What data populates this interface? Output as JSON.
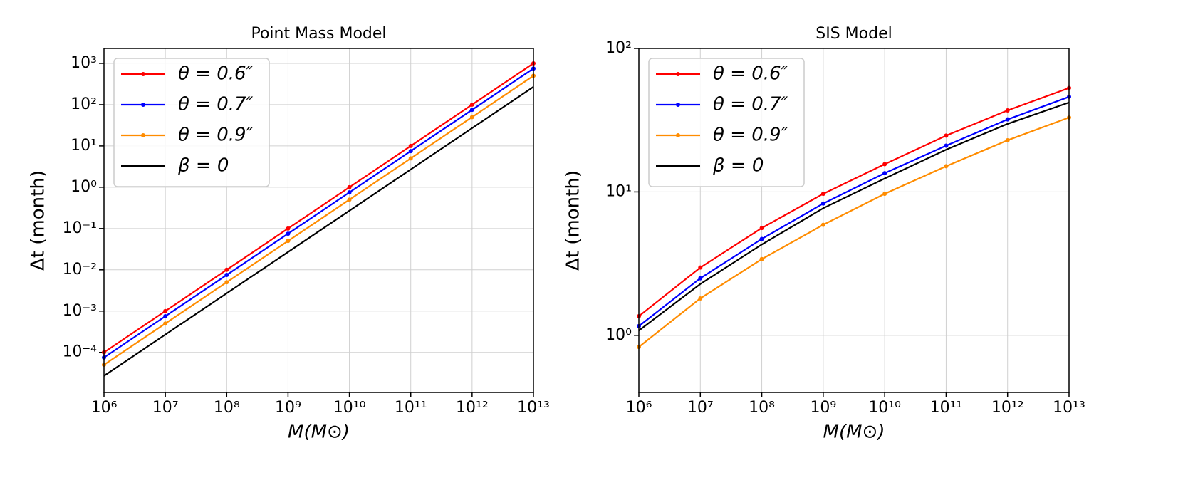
{
  "chart_data": [
    {
      "type": "line",
      "title": "Point Mass Model",
      "xlabel": "M(M⊙)",
      "ylabel": "Δt (month)",
      "xscale": "log",
      "yscale": "log",
      "grid": true,
      "legend": "upper left",
      "x": [
        1000000.0,
        10000000.0,
        100000000.0,
        1000000000.0,
        10000000000.0,
        100000000000.0,
        1000000000000.0,
        10000000000000.0
      ],
      "series": [
        {
          "name": "θ = 0.6″",
          "color": "#ff0000",
          "marker": true,
          "values": [
            0.0001,
            0.001,
            0.01,
            0.1,
            1,
            10,
            100,
            1000
          ]
        },
        {
          "name": "θ = 0.7″",
          "color": "#0000ff",
          "marker": true,
          "values": [
            7.5e-05,
            0.00075,
            0.0075,
            0.075,
            0.75,
            7.5,
            75,
            750
          ]
        },
        {
          "name": "θ = 0.9″",
          "color": "#ff8c00",
          "marker": true,
          "values": [
            5e-05,
            0.0005,
            0.005,
            0.05,
            0.5,
            5,
            50,
            500
          ]
        },
        {
          "name": "β = 0",
          "color": "#000000",
          "marker": false,
          "values": [
            2.7e-05,
            0.00027,
            0.0027,
            0.027,
            0.27,
            2.7,
            27,
            270
          ]
        }
      ],
      "xlim": [
        1000000.0,
        10000000000000.0
      ],
      "xticks": [
        {
          "value": 1000000.0,
          "label": "10⁶"
        },
        {
          "value": 10000000.0,
          "label": "10⁷"
        },
        {
          "value": 100000000.0,
          "label": "10⁸"
        },
        {
          "value": 1000000000.0,
          "label": "10⁹"
        },
        {
          "value": 10000000000.0,
          "label": "10¹⁰"
        },
        {
          "value": 100000000000.0,
          "label": "10¹¹"
        },
        {
          "value": 1000000000000.0,
          "label": "10¹²"
        },
        {
          "value": 10000000000000.0,
          "label": "10¹³"
        }
      ],
      "ylim": [
        1.07e-05,
        2300
      ],
      "yticks": [
        {
          "value": 0.0001,
          "label": "10⁻⁴"
        },
        {
          "value": 0.001,
          "label": "10⁻³"
        },
        {
          "value": 0.01,
          "label": "10⁻²"
        },
        {
          "value": 0.1,
          "label": "10⁻¹"
        },
        {
          "value": 1,
          "label": "10⁰"
        },
        {
          "value": 10,
          "label": "10¹"
        },
        {
          "value": 100,
          "label": "10²"
        },
        {
          "value": 1000,
          "label": "10³"
        }
      ]
    },
    {
      "type": "line",
      "title": "SIS Model",
      "xlabel": "M(M⊙)",
      "ylabel": "Δt (month)",
      "xscale": "log",
      "yscale": "log",
      "grid": true,
      "legend": "upper left",
      "x": [
        1000000.0,
        10000000.0,
        100000000.0,
        1000000000.0,
        10000000000.0,
        100000000000.0,
        1000000000000.0,
        10000000000000.0
      ],
      "series": [
        {
          "name": "θ = 0.6″",
          "color": "#ff0000",
          "marker": true,
          "values": [
            1.36,
            2.97,
            5.6,
            9.7,
            15.6,
            24.7,
            37,
            53
          ]
        },
        {
          "name": "θ = 0.7″",
          "color": "#0000ff",
          "marker": true,
          "values": [
            1.16,
            2.5,
            4.7,
            8.3,
            13.5,
            21,
            32,
            46
          ]
        },
        {
          "name": "θ = 0.9″",
          "color": "#ff8c00",
          "marker": true,
          "values": [
            0.83,
            1.81,
            3.4,
            5.9,
            9.7,
            15.1,
            22.9,
            33
          ]
        },
        {
          "name": "β = 0",
          "color": "#000000",
          "marker": false,
          "values": [
            1.08,
            2.28,
            4.3,
            7.7,
            12.4,
            19.7,
            29.8,
            42
          ]
        }
      ],
      "xlim": [
        1000000.0,
        10000000000000.0
      ],
      "xticks": [
        {
          "value": 1000000.0,
          "label": "10⁶"
        },
        {
          "value": 10000000.0,
          "label": "10⁷"
        },
        {
          "value": 100000000.0,
          "label": "10⁸"
        },
        {
          "value": 1000000000.0,
          "label": "10⁹"
        },
        {
          "value": 10000000000.0,
          "label": "10¹⁰"
        },
        {
          "value": 100000000000.0,
          "label": "10¹¹"
        },
        {
          "value": 1000000000000.0,
          "label": "10¹²"
        },
        {
          "value": 10000000000000.0,
          "label": "10¹³"
        }
      ],
      "ylim": [
        0.4,
        100
      ],
      "yticks": [
        {
          "value": 1,
          "label": "10⁰"
        },
        {
          "value": 10,
          "label": "10¹"
        },
        {
          "value": 100,
          "label": "10²"
        }
      ]
    }
  ]
}
